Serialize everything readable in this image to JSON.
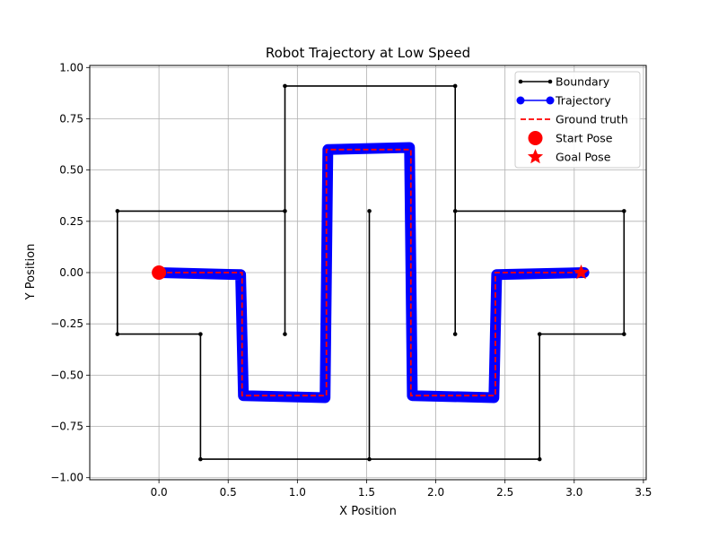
{
  "chart_data": {
    "type": "line",
    "title": "Robot Trajectory at Low Speed",
    "xlabel": "X Position",
    "ylabel": "Y Position",
    "xlim": [
      -0.5,
      3.52
    ],
    "ylim": [
      -1.01,
      1.01
    ],
    "xticks": [
      0.0,
      0.5,
      1.0,
      1.5,
      2.0,
      2.5,
      3.0,
      3.5
    ],
    "xtick_labels": [
      "0.0",
      "0.5",
      "1.0",
      "1.5",
      "2.0",
      "2.5",
      "3.0",
      "3.5"
    ],
    "yticks": [
      -1.0,
      -0.75,
      -0.5,
      -0.25,
      0.0,
      0.25,
      0.5,
      0.75,
      1.0
    ],
    "ytick_labels": [
      "−1.00",
      "−0.75",
      "−0.50",
      "−0.25",
      "0.00",
      "0.25",
      "0.50",
      "0.75",
      "1.00"
    ],
    "grid": true,
    "legend_position": "top-right",
    "legend": [
      {
        "label": "Boundary",
        "style": "line-dot",
        "color": "#000000"
      },
      {
        "label": "Trajectory",
        "style": "line-circle",
        "color": "#0000ff"
      },
      {
        "label": "Ground truth",
        "style": "dashed",
        "color": "#ff0000"
      },
      {
        "label": "Start Pose",
        "style": "big-circle",
        "color": "#ff0000"
      },
      {
        "label": "Goal Pose",
        "style": "star",
        "color": "#ff0000"
      }
    ],
    "series": [
      {
        "name": "Boundary",
        "color": "#000000",
        "x": [
          0.91,
          0.91,
          2.14,
          2.14,
          3.36,
          3.36,
          2.75,
          2.75,
          0.3,
          0.3,
          -0.3,
          -0.3,
          0.91,
          0.91
        ],
        "y": [
          0.91,
          0.3,
          0.3,
          0.91,
          0.3,
          -0.3,
          -0.3,
          -0.91,
          -0.91,
          -0.3,
          -0.3,
          0.3,
          0.3,
          0.91
        ],
        "segments": [
          {
            "x": [
              0.91,
              2.14
            ],
            "y": [
              0.91,
              0.91
            ]
          },
          {
            "x": [
              2.14,
              2.14
            ],
            "y": [
              0.91,
              -0.3
            ]
          },
          {
            "x": [
              2.14,
              3.36
            ],
            "y": [
              0.3,
              0.3
            ]
          },
          {
            "x": [
              3.36,
              3.36
            ],
            "y": [
              0.3,
              -0.3
            ]
          },
          {
            "x": [
              3.36,
              2.75
            ],
            "y": [
              -0.3,
              -0.3
            ]
          },
          {
            "x": [
              2.75,
              2.75
            ],
            "y": [
              -0.3,
              -0.91
            ]
          },
          {
            "x": [
              2.75,
              0.3
            ],
            "y": [
              -0.91,
              -0.91
            ]
          },
          {
            "x": [
              0.3,
              0.3
            ],
            "y": [
              -0.91,
              -0.3
            ]
          },
          {
            "x": [
              0.3,
              -0.3
            ],
            "y": [
              -0.3,
              -0.3
            ]
          },
          {
            "x": [
              -0.3,
              -0.3
            ],
            "y": [
              -0.3,
              0.3
            ]
          },
          {
            "x": [
              -0.3,
              0.91
            ],
            "y": [
              0.3,
              0.3
            ]
          },
          {
            "x": [
              0.91,
              0.91
            ],
            "y": [
              -0.3,
              0.91
            ]
          },
          {
            "x": [
              1.52,
              1.52
            ],
            "y": [
              0.3,
              -0.91
            ]
          }
        ],
        "points": [
          [
            0.91,
            0.91
          ],
          [
            2.14,
            0.91
          ],
          [
            2.14,
            0.3
          ],
          [
            2.14,
            -0.3
          ],
          [
            3.36,
            0.3
          ],
          [
            3.36,
            -0.3
          ],
          [
            2.75,
            -0.3
          ],
          [
            2.75,
            -0.91
          ],
          [
            1.52,
            -0.91
          ],
          [
            1.52,
            0.3
          ],
          [
            0.3,
            -0.91
          ],
          [
            0.3,
            -0.3
          ],
          [
            -0.3,
            -0.3
          ],
          [
            -0.3,
            0.3
          ],
          [
            0.91,
            0.3
          ],
          [
            0.91,
            -0.3
          ]
        ]
      },
      {
        "name": "Trajectory",
        "color": "#0000ff",
        "x": [
          0.0,
          0.59,
          0.61,
          1.2,
          1.22,
          1.81,
          1.83,
          2.42,
          2.44,
          3.07
        ],
        "y": [
          0.0,
          -0.01,
          -0.6,
          -0.61,
          0.6,
          0.61,
          -0.6,
          -0.61,
          -0.01,
          0.0
        ]
      },
      {
        "name": "Ground truth",
        "color": "#ff0000",
        "x": [
          0.0,
          0.6,
          0.6,
          1.21,
          1.21,
          1.82,
          1.82,
          2.43,
          2.43,
          3.04
        ],
        "y": [
          0.0,
          0.0,
          -0.6,
          -0.6,
          0.6,
          0.6,
          -0.6,
          -0.6,
          0.0,
          0.0
        ]
      },
      {
        "name": "Start Pose",
        "color": "#ff0000",
        "x": [
          0.0
        ],
        "y": [
          0.0
        ]
      },
      {
        "name": "Goal Pose",
        "color": "#ff0000",
        "x": [
          3.05
        ],
        "y": [
          0.0
        ]
      }
    ]
  }
}
